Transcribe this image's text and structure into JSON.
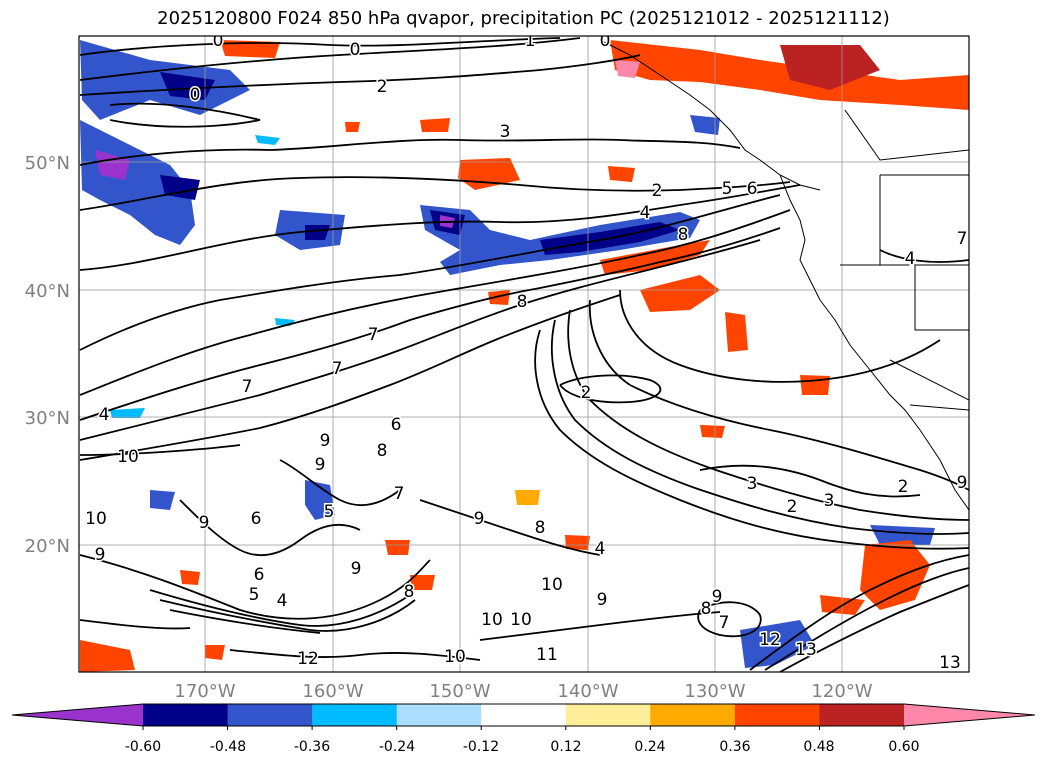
{
  "title": "2025120800 F024 850 hPa qvapor, precipitation PC (2025121012 - 2025121112)",
  "map": {
    "lon_labels": [
      "170°W",
      "160°W",
      "150°W",
      "140°W",
      "130°W",
      "120°W"
    ],
    "lat_labels": [
      "50°N",
      "40°N",
      "30°N",
      "20°N"
    ],
    "lon_values": [
      -170,
      -160,
      -150,
      -140,
      -130,
      -120
    ],
    "lat_values": [
      50,
      40,
      30,
      20
    ],
    "contour_labels": [
      {
        "text": "0"
      },
      {
        "text": "0"
      },
      {
        "text": "1"
      },
      {
        "text": "0"
      },
      {
        "text": "2"
      },
      {
        "text": "3"
      },
      {
        "text": "0"
      },
      {
        "text": "2"
      },
      {
        "text": "4"
      },
      {
        "text": "5"
      },
      {
        "text": "6"
      },
      {
        "text": "8"
      },
      {
        "text": "8"
      },
      {
        "text": "7"
      },
      {
        "text": "7"
      },
      {
        "text": "7"
      },
      {
        "text": "4"
      },
      {
        "text": "10"
      },
      {
        "text": "2"
      },
      {
        "text": "9"
      },
      {
        "text": "6"
      },
      {
        "text": "8"
      },
      {
        "text": "7"
      },
      {
        "text": "9"
      },
      {
        "text": "5"
      },
      {
        "text": "9"
      },
      {
        "text": "8"
      },
      {
        "text": "3"
      },
      {
        "text": "2"
      },
      {
        "text": "3"
      },
      {
        "text": "2"
      },
      {
        "text": "4"
      },
      {
        "text": "9"
      },
      {
        "text": "10"
      },
      {
        "text": "6"
      },
      {
        "text": "9"
      },
      {
        "text": "5"
      },
      {
        "text": "4"
      },
      {
        "text": "6"
      },
      {
        "text": "9"
      },
      {
        "text": "8"
      },
      {
        "text": "10"
      },
      {
        "text": "10"
      },
      {
        "text": "10"
      },
      {
        "text": "9"
      },
      {
        "text": "12"
      },
      {
        "text": "10"
      },
      {
        "text": "11"
      },
      {
        "text": "9"
      },
      {
        "text": "8"
      },
      {
        "text": "7"
      },
      {
        "text": "12"
      },
      {
        "text": "13"
      },
      {
        "text": "13"
      },
      {
        "text": "4"
      },
      {
        "text": "7"
      },
      {
        "text": "9"
      }
    ]
  },
  "colorbar": {
    "tick_labels": [
      "-0.60",
      "-0.48",
      "-0.36",
      "-0.24",
      "-0.12",
      "0.12",
      "0.24",
      "0.36",
      "0.48",
      "0.60"
    ],
    "tick_values": [
      -0.6,
      -0.48,
      -0.36,
      -0.24,
      -0.12,
      0.12,
      0.24,
      0.36,
      0.48,
      0.6
    ],
    "colors": [
      "#9933cc",
      "#000088",
      "#3355cc",
      "#00bbff",
      "#aaddff",
      "#ffffff",
      "#ffee99",
      "#ffaa00",
      "#ff4400",
      "#bb2222",
      "#ff88aa"
    ],
    "extend": "both"
  }
}
